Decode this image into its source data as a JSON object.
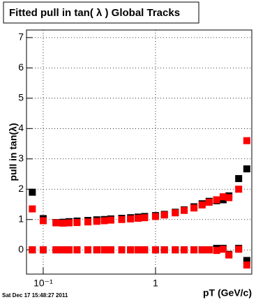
{
  "chart_data": {
    "type": "scatter",
    "title": "Fitted pull in tan( λ )  Global Tracks",
    "y_label": "pull in tan(λ)",
    "x_label": "pT (GeV/c)",
    "footer": "Sat Dec 17 15:48:27 2011",
    "log_x": true,
    "grid": true,
    "xlim": [
      0.071,
      7.2
    ],
    "ylim": [
      -0.8,
      7.25
    ],
    "xticks": [
      {
        "value": 0.1,
        "label": "10⁻¹"
      },
      1
    ],
    "yticks": [
      0,
      1,
      2,
      3,
      4,
      5,
      6,
      7
    ],
    "series": [
      {
        "color": "#000000",
        "x": [
          0.08,
          0.1,
          0.13,
          0.15,
          0.17,
          0.2,
          0.25,
          0.3,
          0.35,
          0.4,
          0.5,
          0.6,
          0.7,
          0.8,
          1,
          1.2,
          1.5,
          1.8,
          2.2,
          2.6,
          3,
          3.5,
          4,
          4.5,
          5.5,
          6.5
        ],
        "values": [
          1.9,
          1.03,
          0.9,
          0.91,
          0.93,
          0.95,
          0.97,
          0.99,
          1.0,
          1.02,
          1.04,
          1.06,
          1.08,
          1.1,
          1.13,
          1.17,
          1.24,
          1.32,
          1.42,
          1.52,
          1.6,
          1.62,
          1.65,
          1.78,
          2.35,
          2.67
        ]
      },
      {
        "color": "#000000",
        "x": [
          0.08,
          0.1,
          0.13,
          0.15,
          0.17,
          0.2,
          0.25,
          0.3,
          0.35,
          0.4,
          0.5,
          0.6,
          0.7,
          0.8,
          1,
          1.2,
          1.5,
          1.8,
          2.2,
          2.6,
          3,
          3.5,
          4,
          4.5,
          5.5,
          6.5
        ],
        "values": [
          0,
          0,
          0,
          0,
          0,
          0,
          0,
          0,
          0,
          0,
          0,
          0,
          0,
          0,
          0,
          0,
          0,
          0,
          0,
          0,
          0,
          0.05,
          0.05,
          -0.15,
          0.05,
          -0.35
        ]
      },
      {
        "color": "#ff0000",
        "x": [
          0.08,
          0.1,
          0.13,
          0.15,
          0.17,
          0.2,
          0.25,
          0.3,
          0.35,
          0.4,
          0.5,
          0.6,
          0.7,
          0.8,
          1,
          1.2,
          1.5,
          1.8,
          2.2,
          2.6,
          3,
          3.5,
          4,
          4.5,
          5.5,
          6.5
        ],
        "values": [
          1.35,
          0.96,
          0.89,
          0.88,
          0.89,
          0.9,
          0.92,
          0.94,
          0.96,
          0.98,
          1.0,
          1.02,
          1.04,
          1.06,
          1.1,
          1.15,
          1.22,
          1.3,
          1.38,
          1.48,
          1.57,
          1.65,
          1.75,
          1.72,
          2.0,
          3.6
        ]
      },
      {
        "color": "#ff0000",
        "x": [
          0.08,
          0.1,
          0.13,
          0.15,
          0.17,
          0.2,
          0.25,
          0.3,
          0.35,
          0.4,
          0.5,
          0.6,
          0.7,
          0.8,
          1,
          1.2,
          1.5,
          1.8,
          2.2,
          2.6,
          3,
          3.5,
          4,
          4.5,
          5.5,
          6.5
        ],
        "values": [
          0,
          0,
          0,
          0,
          0,
          0,
          0,
          0,
          0,
          0,
          0,
          0,
          0,
          0,
          0,
          0,
          0,
          0,
          0,
          0,
          0,
          -0.02,
          0.02,
          -0.17,
          0.02,
          -0.5
        ]
      }
    ]
  }
}
